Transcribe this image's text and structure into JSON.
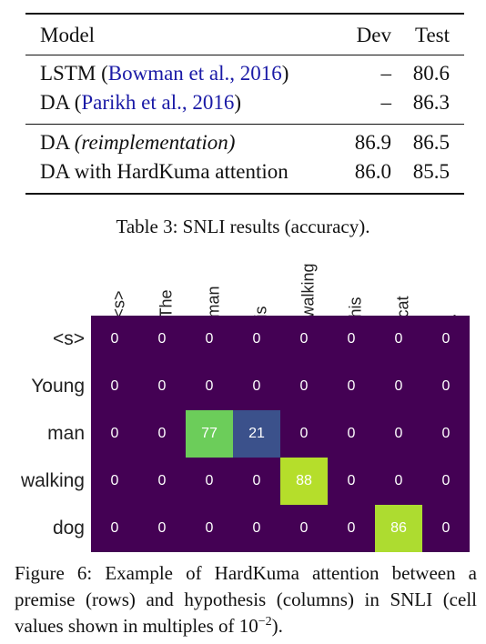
{
  "table": {
    "header": {
      "model": "Model",
      "dev": "Dev",
      "test": "Test"
    },
    "group1": [
      {
        "model": "LSTM (",
        "cite": "Bowman et al., 2016",
        "close": ")",
        "dev": "–",
        "test": "80.6"
      },
      {
        "model": "DA (",
        "cite": "Parikh et al., 2016",
        "close": ")",
        "dev": "–",
        "test": "86.3"
      }
    ],
    "group2": [
      {
        "model": "DA ",
        "italic": "(reimplementation)",
        "dev": "86.9",
        "test": "86.5"
      },
      {
        "model": "DA with HardKuma attention",
        "dev": "86.0",
        "test": "85.5"
      }
    ],
    "caption": "Table 3: SNLI results (accuracy)."
  },
  "heatmap": {
    "columns": [
      "<s>",
      "The",
      "man",
      "is",
      "walking",
      "his",
      "cat",
      "."
    ],
    "rows": [
      "<s>",
      "Young",
      "man",
      "walking",
      "dog"
    ],
    "values": [
      [
        0,
        0,
        0,
        0,
        0,
        0,
        0,
        0
      ],
      [
        0,
        0,
        0,
        0,
        0,
        0,
        0,
        0
      ],
      [
        0,
        0,
        77,
        21,
        0,
        0,
        0,
        0
      ],
      [
        0,
        0,
        0,
        0,
        88,
        0,
        0,
        0
      ],
      [
        0,
        0,
        0,
        0,
        0,
        0,
        86,
        0
      ]
    ],
    "colors": {
      "zero": "#440154",
      "77": "#6ccd5a",
      "21": "#3b518b",
      "88": "#b5de2b",
      "86": "#addc30"
    }
  },
  "figure_caption": {
    "text": "Figure 6: Example of HardKuma attention between a premise (rows) and hypothesis (columns) in SNLI (cell values shown in multiples of ",
    "base": "10",
    "exponent": "−2",
    "end": ")."
  }
}
